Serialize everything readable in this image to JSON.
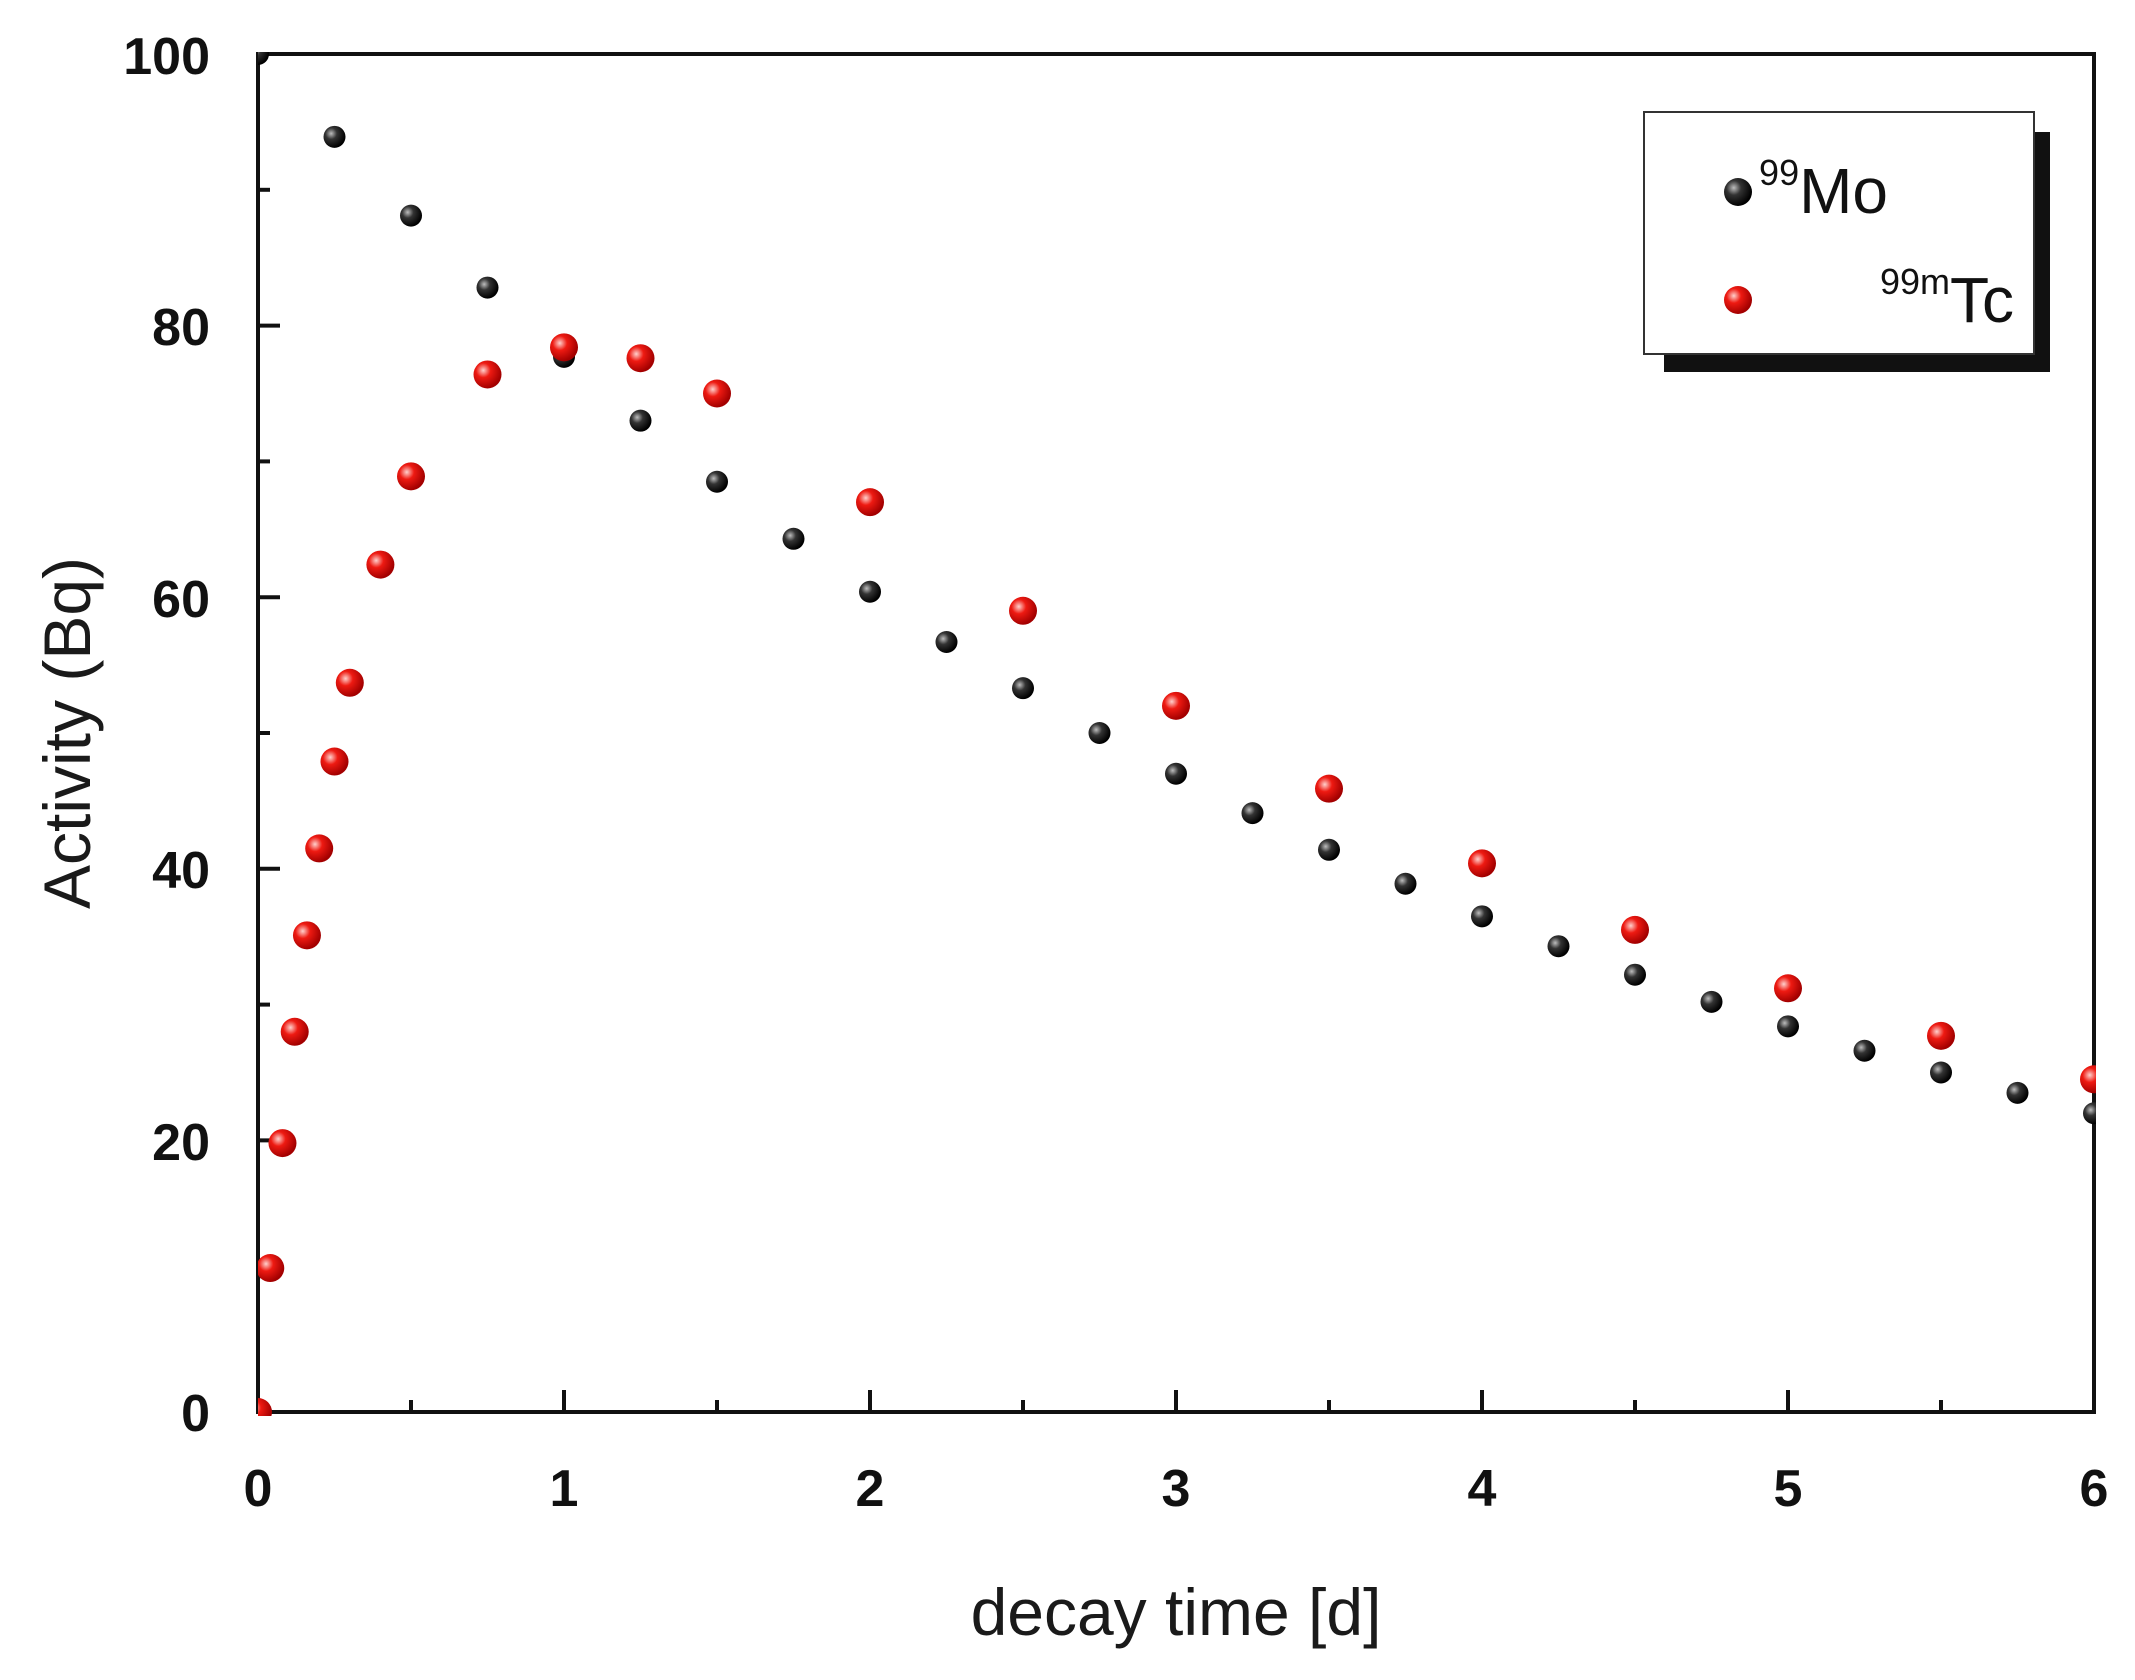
{
  "chart_data": {
    "type": "scatter",
    "title": "",
    "xlabel": "decay time [d]",
    "ylabel": "Activity (Bq)",
    "xlim": [
      0,
      6
    ],
    "ylim": [
      0,
      100
    ],
    "x_ticks": [
      "0",
      "1",
      "2",
      "3",
      "4",
      "5",
      "6"
    ],
    "y_ticks": [
      "0",
      "20",
      "40",
      "60",
      "80",
      "100"
    ],
    "grid": false,
    "legend_position": "top-right",
    "series": [
      {
        "name": "99Mo",
        "superscript": "99",
        "symbol": "Mo",
        "color": "#111111",
        "half_life_days": 2.75,
        "initial_activity": 100,
        "x": [
          0.0,
          0.25,
          0.5,
          0.75,
          1.0,
          1.25,
          1.5,
          1.75,
          2.0,
          2.25,
          2.5,
          2.75,
          3.0,
          3.25,
          3.5,
          3.75,
          4.0,
          4.25,
          4.5,
          4.75,
          5.0,
          5.25,
          5.5,
          5.75,
          6.0
        ],
        "y": [
          100.0,
          93.9,
          88.1,
          82.8,
          77.7,
          73.0,
          68.5,
          64.3,
          60.4,
          56.7,
          53.3,
          50.0,
          47.0,
          44.1,
          41.4,
          38.9,
          36.5,
          34.3,
          32.2,
          30.2,
          28.4,
          26.6,
          25.0,
          23.5,
          22.0
        ]
      },
      {
        "name": "99mTc",
        "superscript": "99m",
        "symbol": "Tc",
        "color": "#e8140f",
        "half_life_hours": 6.0,
        "x": [
          0.0,
          0.04,
          0.08,
          0.12,
          0.16,
          0.2,
          0.25,
          0.3,
          0.4,
          0.5,
          0.75,
          1.0,
          1.25,
          1.5,
          2.0,
          2.5,
          3.0,
          3.5,
          4.0,
          4.5,
          5.0,
          5.5,
          6.0
        ],
        "y": [
          0.0,
          10.6,
          19.8,
          28.0,
          35.1,
          41.5,
          47.9,
          53.7,
          62.4,
          68.9,
          76.4,
          78.4,
          77.6,
          75.0,
          67.0,
          59.0,
          52.0,
          45.9,
          40.4,
          35.5,
          31.2,
          27.7,
          24.5
        ]
      }
    ]
  }
}
